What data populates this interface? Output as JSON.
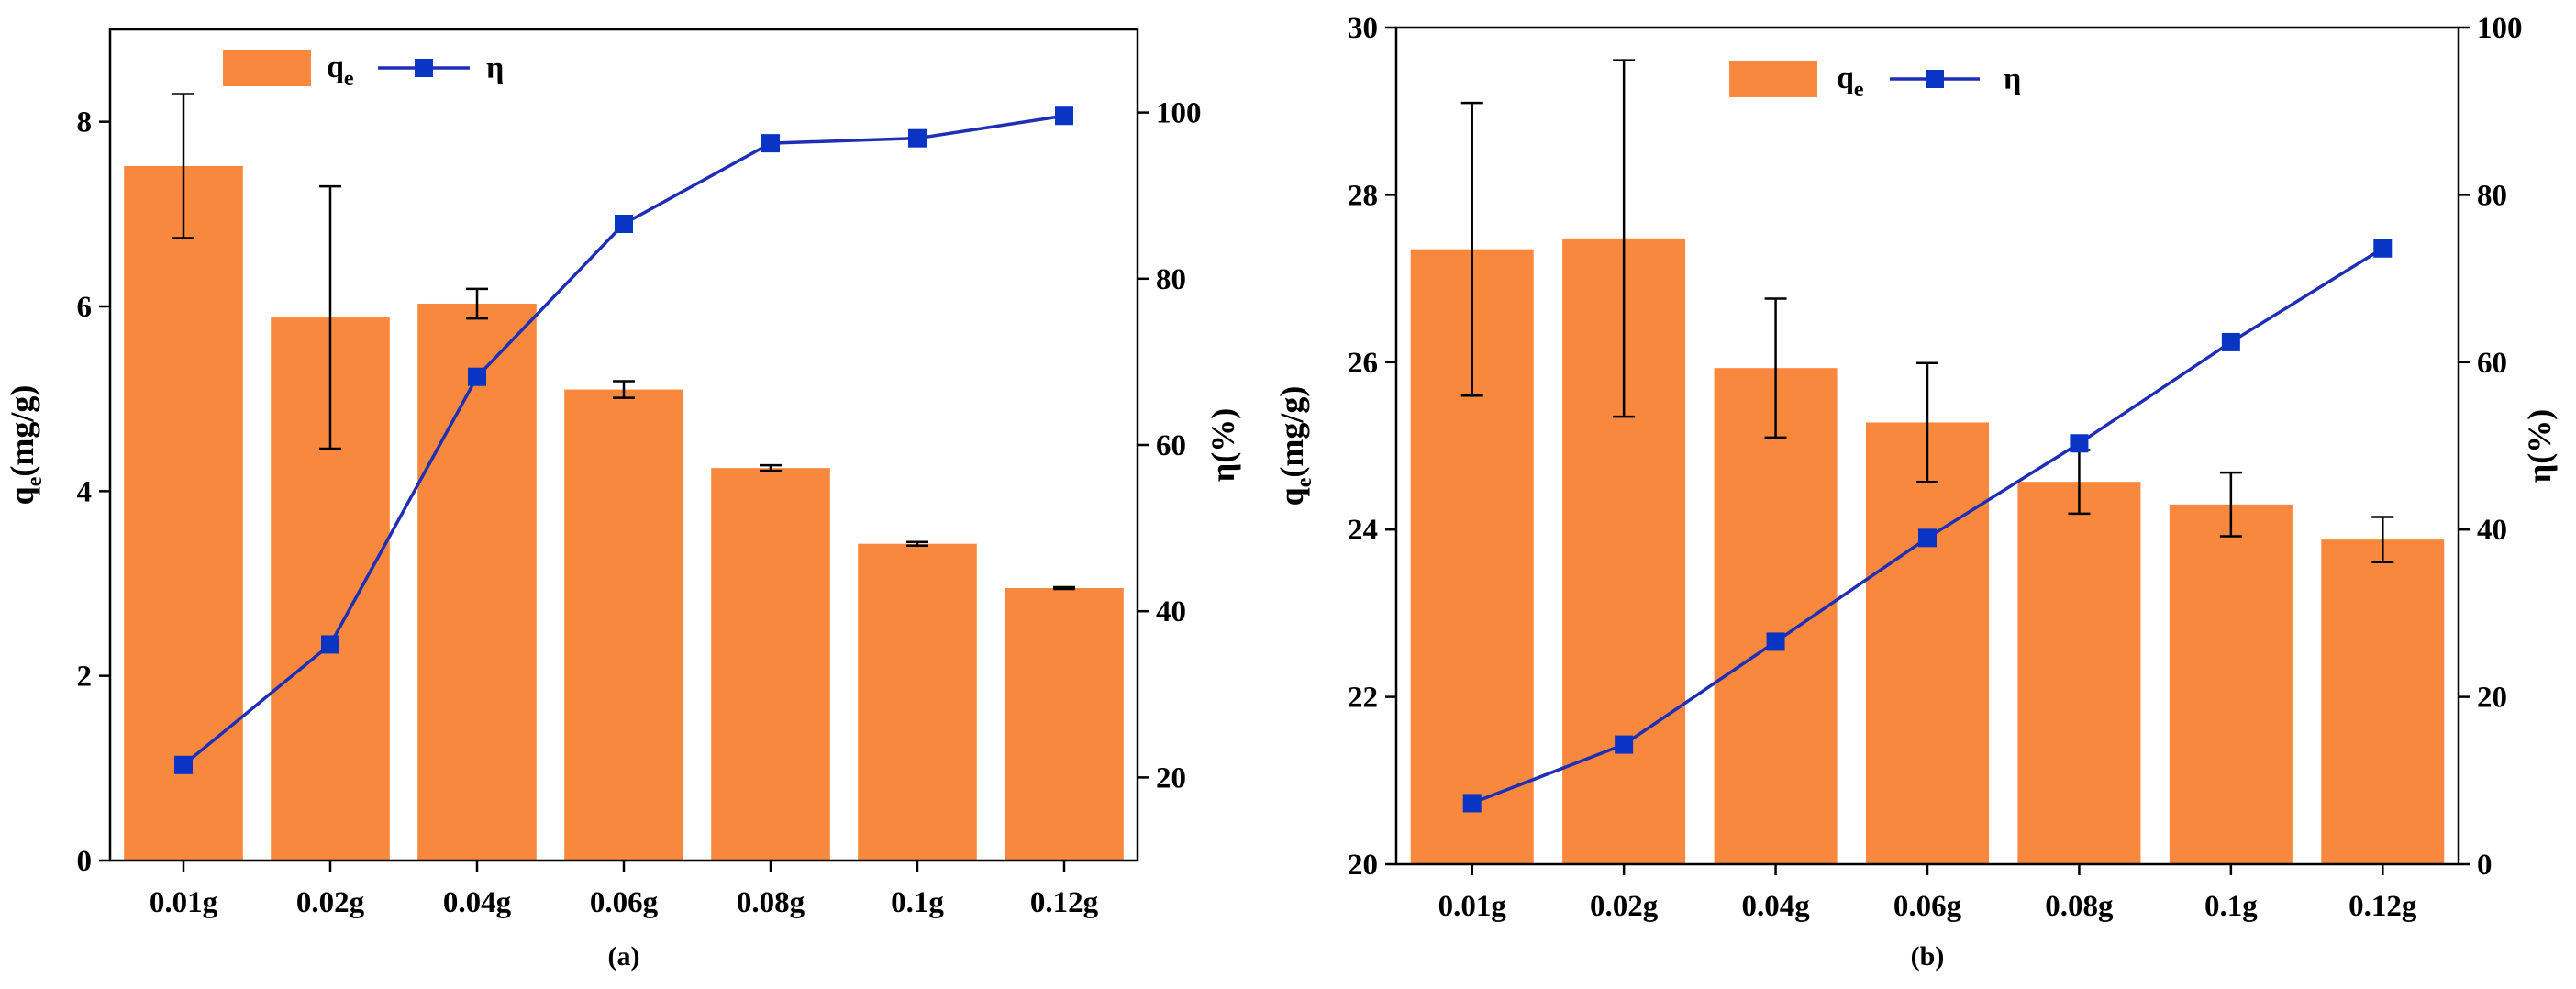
{
  "chart_data": [
    {
      "panel": "a",
      "type": "bar+line",
      "caption": "(a)",
      "categories": [
        "0.01g",
        "0.02g",
        "0.04g",
        "0.06g",
        "0.08g",
        "0.1g",
        "0.12g"
      ],
      "series": [
        {
          "name": "q_e",
          "type": "bar",
          "axis": "left",
          "color": "#F7883D",
          "values": [
            7.52,
            5.88,
            6.03,
            5.1,
            4.25,
            3.43,
            2.95
          ],
          "error": [
            0.78,
            1.42,
            0.16,
            0.09,
            0.03,
            0.02,
            0.01
          ]
        },
        {
          "name": "η",
          "type": "line",
          "axis": "right",
          "color": "#1F2FB5",
          "marker_color": "#0A35C4",
          "values": [
            21.5,
            36.0,
            68.2,
            86.6,
            96.3,
            96.9,
            99.6
          ]
        }
      ],
      "ylabel_left": {
        "base": "q",
        "sub": "e",
        "unit": "(mg/g)"
      },
      "ylabel_right": "η(%)",
      "ylim_left": [
        0,
        9
      ],
      "ylim_right": [
        10,
        110
      ],
      "yticks_left": [
        0,
        2,
        4,
        6,
        8
      ],
      "yticks_right": [
        20,
        40,
        60,
        80,
        100
      ],
      "legend": {
        "bar_label_base": "q",
        "bar_label_sub": "e",
        "line_label": "η",
        "position": "top-left"
      }
    },
    {
      "panel": "b",
      "type": "bar+line",
      "caption": "(b)",
      "categories": [
        "0.01g",
        "0.02g",
        "0.04g",
        "0.06g",
        "0.08g",
        "0.1g",
        "0.12g"
      ],
      "series": [
        {
          "name": "q_e",
          "type": "bar",
          "axis": "left",
          "color": "#F7883D",
          "values": [
            27.35,
            27.48,
            25.93,
            25.28,
            24.57,
            24.3,
            23.88
          ],
          "error": [
            1.75,
            2.13,
            0.83,
            0.71,
            0.38,
            0.38,
            0.27
          ]
        },
        {
          "name": "η",
          "type": "line",
          "axis": "right",
          "color": "#1F2FB5",
          "marker_color": "#0A35C4",
          "values": [
            7.3,
            14.3,
            26.6,
            39.0,
            50.3,
            62.4,
            73.6
          ]
        }
      ],
      "ylabel_left": {
        "base": "q",
        "sub": "e",
        "unit": "(mg/g)"
      },
      "ylabel_right": "η(%)",
      "ylim_left": [
        20,
        30
      ],
      "ylim_right": [
        0,
        100
      ],
      "yticks_left": [
        20,
        22,
        24,
        26,
        28,
        30
      ],
      "yticks_right": [
        0,
        20,
        40,
        60,
        80,
        100
      ],
      "legend": {
        "bar_label_base": "q",
        "bar_label_sub": "e",
        "line_label": "η",
        "position": "top-left"
      }
    }
  ]
}
